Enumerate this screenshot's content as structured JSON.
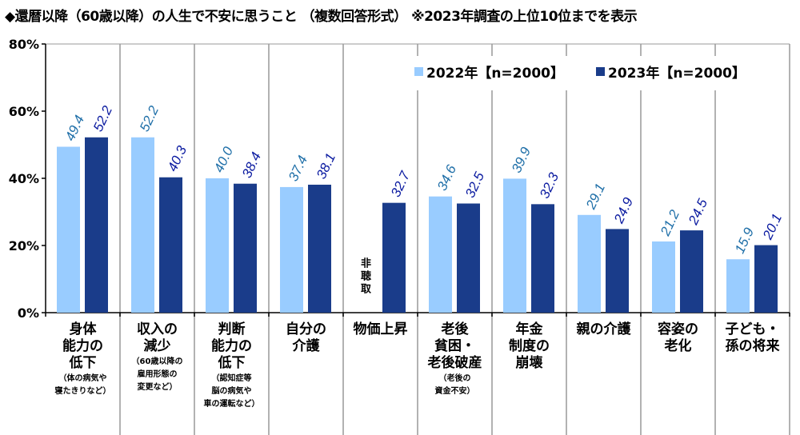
{
  "chart_data": {
    "type": "bar",
    "title": "◆還暦以降（60歳以降）の人生で不安に思うこと （複数回答形式） ※2023年調査の上位10位までを表示",
    "categories": [
      {
        "main": [
          "身体",
          "能力の",
          "低下"
        ],
        "sub": [
          "（体の病気や",
          "寝たきりなど）"
        ]
      },
      {
        "main": [
          "収入の",
          "減少"
        ],
        "sub": [
          "（60歳以降の",
          "雇用形態の",
          "変更など）"
        ]
      },
      {
        "main": [
          "判断",
          "能力の",
          "低下"
        ],
        "sub": [
          "（認知症等",
          "脳の病気や",
          "車の運転など）"
        ]
      },
      {
        "main": [
          "自分の",
          "介護"
        ],
        "sub": []
      },
      {
        "main": [
          "物価上昇"
        ],
        "sub": []
      },
      {
        "main": [
          "老後",
          "貧困・",
          "老後破産"
        ],
        "sub": [
          "（老後の",
          "資金不安）"
        ]
      },
      {
        "main": [
          "年金",
          "制度の",
          "崩壊"
        ],
        "sub": []
      },
      {
        "main": [
          "親の介護"
        ],
        "sub": []
      },
      {
        "main": [
          "容姿の",
          "老化"
        ],
        "sub": []
      },
      {
        "main": [
          "子ども・",
          "孫の将来"
        ],
        "sub": []
      }
    ],
    "series": [
      {
        "name": "2022年【n=2000】",
        "color": "#99ccff",
        "label_color": "#1f6fa8",
        "values": [
          49.4,
          52.2,
          40.0,
          37.4,
          null,
          34.6,
          39.9,
          29.1,
          21.2,
          15.9
        ]
      },
      {
        "name": "2023年【n=2000】",
        "color": "#1a3c8a",
        "label_color": "#0a1aa0",
        "values": [
          52.2,
          40.3,
          38.4,
          38.1,
          32.7,
          32.5,
          32.3,
          24.9,
          24.5,
          20.1
        ]
      }
    ],
    "missing_label": "非聴取",
    "ylim": [
      0,
      80
    ],
    "yticks": [
      "0%",
      "20%",
      "40%",
      "60%",
      "80%"
    ],
    "ytick_values": [
      0,
      20,
      40,
      60,
      80
    ],
    "legend_position": "top-right",
    "grid": false
  }
}
